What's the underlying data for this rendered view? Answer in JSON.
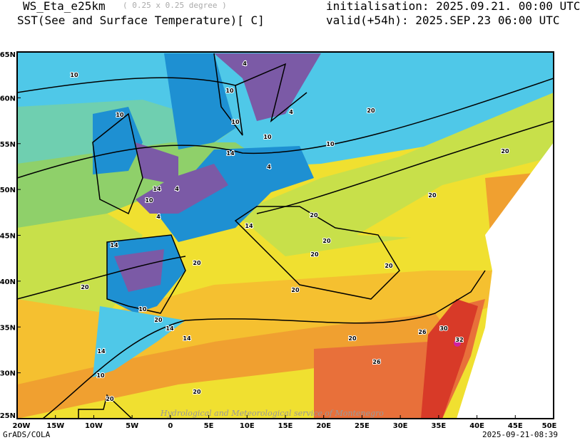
{
  "header": {
    "model": "WS_Eta_e25km",
    "resolution": "( 0.25 x 0.25 degree )",
    "variable": "SST(See and Surface Temperature)[ C]",
    "initialisation": "initialisation: 2025.09.21. 00:00 UTC",
    "valid": "valid(+54h): 2025.SEP.23 06:00 UTC"
  },
  "map": {
    "lat_labels": [
      "65N",
      "60N",
      "55N",
      "50N",
      "45N",
      "40N",
      "35N",
      "30N",
      "25N"
    ],
    "lon_labels": [
      "20W",
      "15W",
      "10W",
      "5W",
      "0",
      "5E",
      "10E",
      "15E",
      "20E",
      "25E",
      "30E",
      "35E",
      "40E",
      "45E",
      "50E"
    ],
    "extent": {
      "lon": [
        -20,
        50
      ],
      "lat": [
        25,
        65
      ]
    },
    "contour_labels": [
      "10",
      "4",
      "10",
      "10",
      "10",
      "14",
      "4",
      "10",
      "10",
      "4",
      "14",
      "4",
      "10",
      "4",
      "20",
      "20",
      "20",
      "20",
      "20",
      "14",
      "20",
      "20",
      "20",
      "14",
      "20",
      "20",
      "14",
      "10",
      "20",
      "14",
      "14",
      "10",
      "20",
      "20",
      "26",
      "26",
      "30",
      "32",
      "20"
    ],
    "watermark": "Hydrological and Meteorological service of Montenegro",
    "colors": {
      "cold": "#7b5aa6",
      "blue": "#1e90d2",
      "cyan": "#4fc8e8",
      "teal": "#6fcfb0",
      "green": "#8fd06a",
      "yellowgreen": "#c8e04a",
      "yellow": "#f0e030",
      "gold": "#f5c030",
      "orange": "#f0a030",
      "darkorange": "#e8703a",
      "red": "#d83a28",
      "magenta": "#d020a0"
    }
  },
  "footer": {
    "credit": "GrADS/COLA",
    "timestamp": "2025-09-21-08:39"
  }
}
